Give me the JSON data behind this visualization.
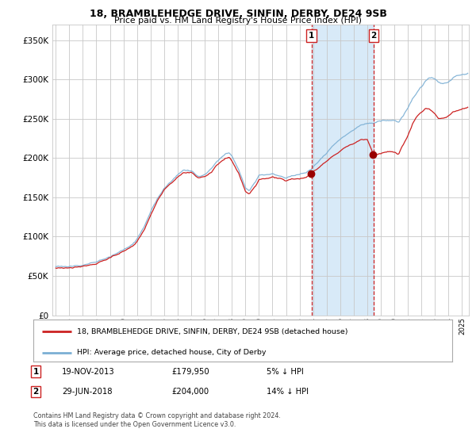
{
  "title": "18, BRAMBLEHEDGE DRIVE, SINFIN, DERBY, DE24 9SB",
  "subtitle": "Price paid vs. HM Land Registry's House Price Index (HPI)",
  "legend_line1": "18, BRAMBLEHEDGE DRIVE, SINFIN, DERBY, DE24 9SB (detached house)",
  "legend_line2": "HPI: Average price, detached house, City of Derby",
  "annotation1": {
    "label": "1",
    "date_x": 2013.875,
    "price": 179950,
    "text": "19-NOV-2013",
    "amount": "£179,950",
    "pct": "5% ↓ HPI"
  },
  "annotation2": {
    "label": "2",
    "date_x": 2018.458,
    "price": 204000,
    "text": "29-JUN-2018",
    "amount": "£204,000",
    "pct": "14% ↓ HPI"
  },
  "hpi_color": "#7BAFD4",
  "price_color": "#CC2222",
  "dot_color": "#990000",
  "background_color": "#FFFFFF",
  "plot_bg_color": "#FFFFFF",
  "grid_color": "#C8C8C8",
  "shade_color": "#D8EAF8",
  "vline_color": "#CC2222",
  "ylim": [
    0,
    370000
  ],
  "yticks": [
    0,
    50000,
    100000,
    150000,
    200000,
    250000,
    300000,
    350000
  ],
  "xlim_start": 1994.75,
  "xlim_end": 2025.5,
  "footer": "Contains HM Land Registry data © Crown copyright and database right 2024.\nThis data is licensed under the Open Government Licence v3.0."
}
